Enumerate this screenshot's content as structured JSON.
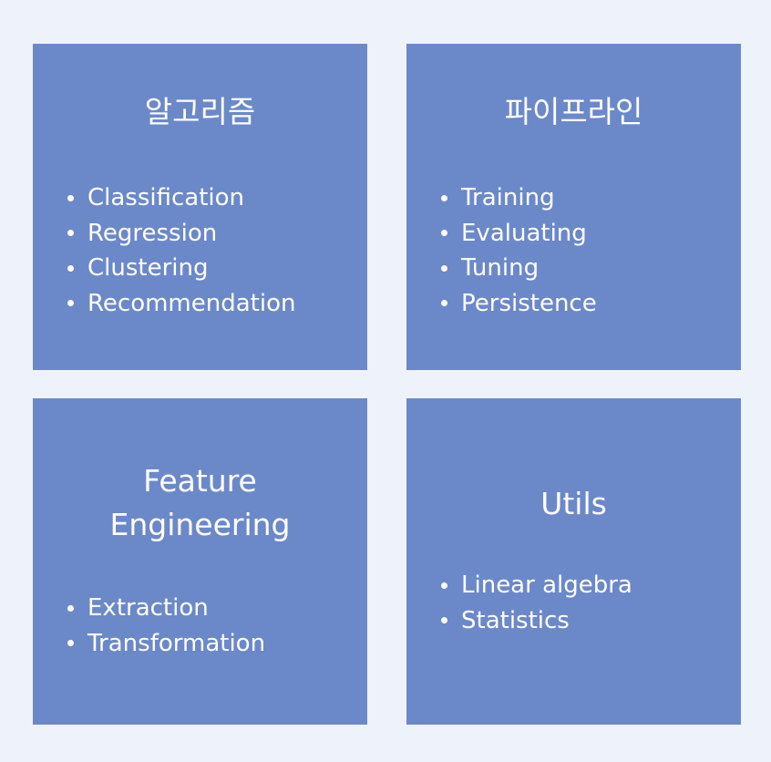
{
  "cards": [
    {
      "title": "알고리즘",
      "items": [
        "Classification",
        "Regression",
        "Clustering",
        "Recommendation"
      ]
    },
    {
      "title": "파이프라인",
      "items": [
        "Training",
        "Evaluating",
        "Tuning",
        "Persistence"
      ]
    },
    {
      "title": "Feature\nEngineering",
      "items": [
        "Extraction",
        "Transformation"
      ]
    },
    {
      "title": "Utils",
      "items": [
        "Linear algebra",
        "Statistics"
      ]
    }
  ],
  "colors": {
    "background": "#eef2fb",
    "card": "#6b89c9",
    "text": "#ffffff"
  }
}
